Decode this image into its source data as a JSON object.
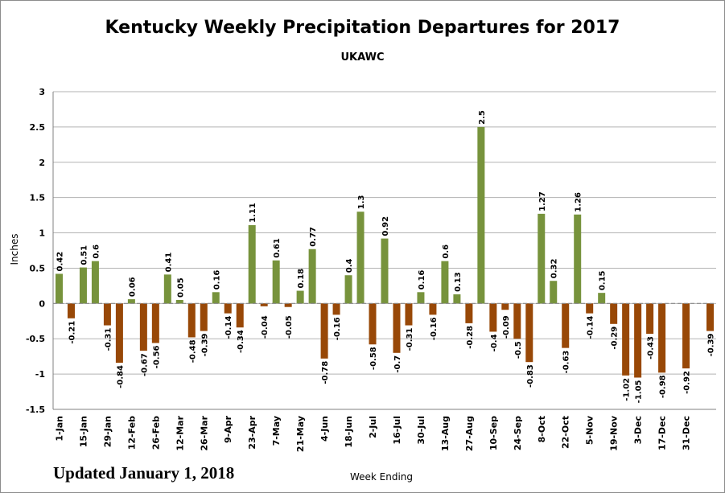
{
  "chart_data": {
    "type": "bar",
    "title": "Kentucky Weekly Precipitation Departures for 2017",
    "subtitle": "UKAWC",
    "xlabel": "Week Ending",
    "ylabel": "Inches",
    "ylim": [
      -1.5,
      3
    ],
    "yticks": [
      "3",
      "2.5",
      "2",
      "1.5",
      "1",
      "0.5",
      "0",
      "-0.5",
      "-1",
      "-1.5"
    ],
    "grid": true,
    "x_tick_labels": [
      "1-Jan",
      "15-Jan",
      "29-Jan",
      "12-Feb",
      "26-Feb",
      "12-Mar",
      "26-Mar",
      "9-Apr",
      "23-Apr",
      "7-May",
      "21-May",
      "4-Jun",
      "18-Jun",
      "2-Jul",
      "16-Jul",
      "30-Jul",
      "13-Aug",
      "27-Aug",
      "10-Sep",
      "24-Sep",
      "8-Oct",
      "22-Oct",
      "5-Nov",
      "19-Nov",
      "3-Dec",
      "17-Dec",
      "31-Dec"
    ],
    "values": [
      0.42,
      -0.21,
      0.51,
      0.6,
      -0.31,
      -0.84,
      0.06,
      -0.67,
      -0.56,
      0.41,
      0.05,
      -0.48,
      -0.39,
      0.16,
      -0.14,
      -0.34,
      1.11,
      -0.04,
      0.61,
      -0.05,
      0.18,
      0.77,
      -0.78,
      -0.16,
      0.4,
      1.3,
      -0.58,
      0.92,
      -0.7,
      -0.31,
      0.16,
      -0.16,
      0.6,
      0.13,
      -0.28,
      2.5,
      -0.4,
      -0.09,
      -0.5,
      -0.83,
      1.27,
      0.32,
      -0.63,
      1.26,
      -0.14,
      0.15,
      -0.29,
      -1.02,
      -1.05,
      -0.43,
      -0.98,
      null,
      -0.92,
      null,
      -0.39
    ],
    "value_labels": [
      "0.42",
      "-0.21",
      "0.51",
      "0.6",
      "-0.31",
      "-0.84",
      "0.06",
      "-0.67",
      "-0.56",
      "0.41",
      "0.05",
      "-0.48",
      "-0.39",
      "0.16",
      "-0.14",
      "-0.34",
      "1.11",
      "-0.04",
      "0.61",
      "-0.05",
      "0.18",
      "0.77",
      "-0.78",
      "-0.16",
      "0.4",
      "1.3",
      "-0.58",
      "0.92",
      "-0.7",
      "-0.31",
      "0.16",
      "-0.16",
      "0.6",
      "0.13",
      "-0.28",
      "2.5",
      "-0.4",
      "-0.09",
      "-0.5",
      "-0.83",
      "1.27",
      "0.32",
      "-0.63",
      "1.26",
      "-0.14",
      "0.15",
      "-0.29",
      "-1.02",
      "-1.05",
      "-0.43",
      "-0.98",
      "",
      "-0.92",
      "",
      "-0.39"
    ],
    "colors": {
      "positive": "#77933c",
      "negative": "#984807",
      "grid": "#b3b3b3",
      "plot_bg": "#ffffff"
    }
  },
  "footer": {
    "updated": "Updated January 1, 2018"
  }
}
